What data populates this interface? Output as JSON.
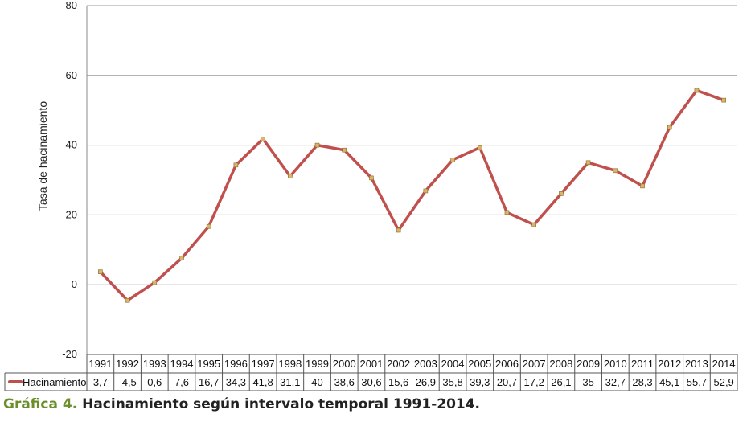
{
  "chart_data": {
    "type": "line",
    "ylabel": "Tasa de hacinamiento",
    "ylim": [
      -20,
      80
    ],
    "yticks": [
      -20,
      0,
      20,
      40,
      60,
      80
    ],
    "grid": true,
    "legend": "in-table-left",
    "series_color": "#c0504d",
    "marker_color": "#d6b56c",
    "x": [
      "1991",
      "1992",
      "1993",
      "1994",
      "1995",
      "1996",
      "1997",
      "1998",
      "1999",
      "2000",
      "2001",
      "2002",
      "2003",
      "2004",
      "2005",
      "2006",
      "2007",
      "2008",
      "2009",
      "2010",
      "2011",
      "2012",
      "2013",
      "2014"
    ],
    "series": [
      {
        "name": "Hacinamiento",
        "values": [
          3.7,
          -4.5,
          0.6,
          7.6,
          16.7,
          34.3,
          41.8,
          31.1,
          40,
          38.6,
          30.6,
          15.6,
          26.9,
          35.8,
          39.3,
          20.7,
          17.2,
          26.1,
          35,
          32.7,
          28.3,
          45.1,
          55.7,
          52.9
        ],
        "labels": [
          "3,7",
          "-4,5",
          "0,6",
          "7,6",
          "16,7",
          "34,3",
          "41,8",
          "31,1",
          "40",
          "38,6",
          "30,6",
          "15,6",
          "26,9",
          "35,8",
          "39,3",
          "20,7",
          "17,2",
          "26,1",
          "35",
          "32,7",
          "28,3",
          "45,1",
          "55,7",
          "52,9"
        ]
      }
    ]
  },
  "caption": {
    "number": "Gráfica 4.",
    "text": "Hacinamiento según intervalo temporal 1991-2014."
  }
}
